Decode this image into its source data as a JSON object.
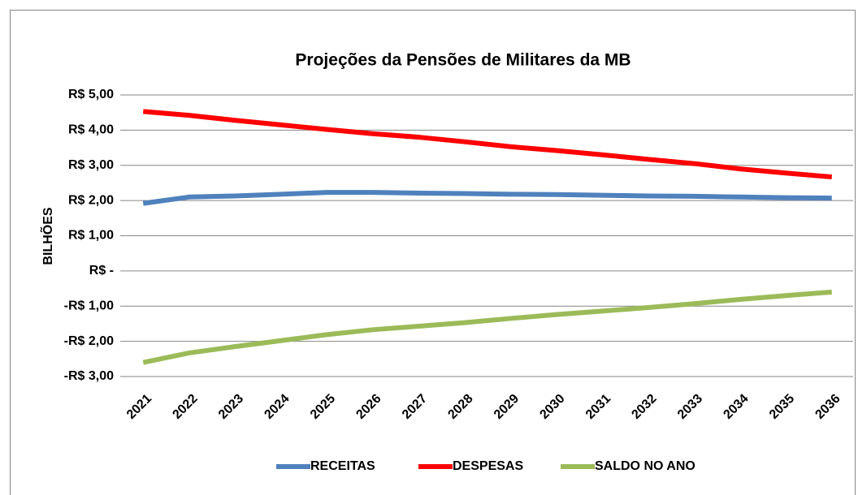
{
  "chart_data": {
    "type": "line",
    "title": "Projeções da Pensões de Militares da MB",
    "y_label": "BILHÕES",
    "categories": [
      "2021",
      "2022",
      "2023",
      "2024",
      "2025",
      "2026",
      "2027",
      "2028",
      "2029",
      "2030",
      "2031",
      "2032",
      "2033",
      "2034",
      "2035",
      "2036"
    ],
    "series": [
      {
        "name": "RECEITAS",
        "color": "#4f81bd",
        "values": [
          1.92,
          2.1,
          2.13,
          2.18,
          2.23,
          2.23,
          2.21,
          2.2,
          2.18,
          2.17,
          2.15,
          2.13,
          2.12,
          2.1,
          2.08,
          2.07
        ]
      },
      {
        "name": "DESPESAS",
        "color": "#ff0000",
        "values": [
          4.53,
          4.42,
          4.28,
          4.15,
          4.02,
          3.9,
          3.8,
          3.67,
          3.53,
          3.42,
          3.3,
          3.17,
          3.05,
          2.9,
          2.78,
          2.67
        ]
      },
      {
        "name": "SALDO NO ANO",
        "color": "#9bbb59",
        "values": [
          -2.6,
          -2.33,
          -2.15,
          -1.98,
          -1.81,
          -1.67,
          -1.57,
          -1.47,
          -1.35,
          -1.24,
          -1.14,
          -1.04,
          -0.93,
          -0.81,
          -0.7,
          -0.6
        ]
      }
    ],
    "ylim": [
      -3,
      5
    ],
    "yticks": [
      {
        "value": -3,
        "label": "-R$ 3,00"
      },
      {
        "value": -2,
        "label": "-R$ 2,00"
      },
      {
        "value": -1,
        "label": "-R$ 1,00"
      },
      {
        "value": 0,
        "label": "R$ -"
      },
      {
        "value": 1,
        "label": "R$ 1,00"
      },
      {
        "value": 2,
        "label": "R$ 2,00"
      },
      {
        "value": 3,
        "label": "R$ 3,00"
      },
      {
        "value": 4,
        "label": "R$ 4,00"
      },
      {
        "value": 5,
        "label": "R$ 5,00"
      }
    ],
    "grid": true,
    "legend": "bottom"
  }
}
